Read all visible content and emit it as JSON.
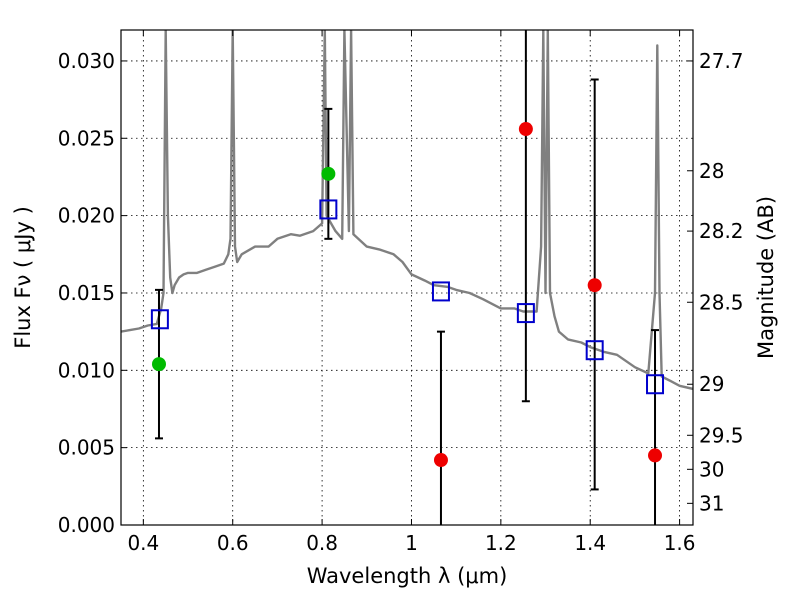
{
  "chart_data": {
    "type": "scatter",
    "xlabel": "Wavelength  λ (μm)",
    "ylabel": "Flux  Fν  ( μJy )",
    "ylabel_right": "Magnitude (AB)",
    "xlim": [
      0.35,
      1.63
    ],
    "ylim": [
      0.0,
      0.032
    ],
    "grid": true,
    "x_ticks": [
      0.4,
      0.6,
      0.8,
      1.0,
      1.2,
      1.4,
      1.6
    ],
    "x_tick_labels": [
      "0.4",
      "0.6",
      "0.8",
      "1",
      "1.2",
      "1.4",
      "1.6"
    ],
    "y_ticks": [
      0.0,
      0.005,
      0.01,
      0.015,
      0.02,
      0.025,
      0.03
    ],
    "y_tick_labels": [
      "0.000",
      "0.005",
      "0.010",
      "0.015",
      "0.020",
      "0.025",
      "0.030"
    ],
    "right_ticks": [
      {
        "label": "27.7",
        "flux": 0.03
      },
      {
        "label": "28",
        "flux": 0.0229
      },
      {
        "label": "28.2",
        "flux": 0.019
      },
      {
        "label": "28.5",
        "flux": 0.0144
      },
      {
        "label": "29",
        "flux": 0.0091
      },
      {
        "label": "29.5",
        "flux": 0.0058
      },
      {
        "label": "30",
        "flux": 0.0036
      },
      {
        "label": "31",
        "flux": 0.0014
      }
    ],
    "series": [
      {
        "kind": "spectrum",
        "color": "#808080",
        "x": [
          0.35,
          0.37,
          0.39,
          0.41,
          0.43,
          0.44,
          0.445,
          0.448,
          0.45,
          0.455,
          0.46,
          0.465,
          0.47,
          0.48,
          0.49,
          0.5,
          0.52,
          0.54,
          0.56,
          0.58,
          0.59,
          0.595,
          0.6,
          0.605,
          0.61,
          0.62,
          0.65,
          0.68,
          0.7,
          0.73,
          0.75,
          0.78,
          0.8,
          0.806,
          0.81,
          0.83,
          0.845,
          0.85,
          0.86,
          0.865,
          0.87,
          0.9,
          0.93,
          0.96,
          0.98,
          1.0,
          1.03,
          1.05,
          1.08,
          1.1,
          1.13,
          1.16,
          1.2,
          1.23,
          1.25,
          1.28,
          1.29,
          1.295,
          1.3,
          1.305,
          1.31,
          1.32,
          1.33,
          1.35,
          1.38,
          1.4,
          1.43,
          1.46,
          1.5,
          1.53,
          1.545,
          1.55,
          1.555,
          1.56,
          1.58,
          1.6,
          1.63
        ],
        "y": [
          0.0125,
          0.0126,
          0.0127,
          0.0129,
          0.013,
          0.014,
          0.015,
          0.025,
          0.032,
          0.02,
          0.016,
          0.015,
          0.0155,
          0.016,
          0.0162,
          0.0163,
          0.0163,
          0.0165,
          0.0167,
          0.0169,
          0.0175,
          0.0185,
          0.032,
          0.018,
          0.017,
          0.0175,
          0.018,
          0.018,
          0.0185,
          0.0188,
          0.0187,
          0.019,
          0.0195,
          0.032,
          0.02,
          0.019,
          0.0185,
          0.032,
          0.019,
          0.032,
          0.0188,
          0.018,
          0.0178,
          0.0175,
          0.017,
          0.0162,
          0.0158,
          0.0155,
          0.0154,
          0.0152,
          0.015,
          0.0146,
          0.014,
          0.014,
          0.0138,
          0.0138,
          0.018,
          0.032,
          0.015,
          0.032,
          0.015,
          0.0135,
          0.0125,
          0.012,
          0.0118,
          0.0115,
          0.0112,
          0.011,
          0.0102,
          0.0098,
          0.015,
          0.031,
          0.015,
          0.0096,
          0.0093,
          0.009,
          0.0088
        ]
      },
      {
        "kind": "model",
        "marker": "open-square",
        "color": "#0000cc",
        "x": [
          0.437,
          0.814,
          1.066,
          1.256,
          1.41,
          1.545
        ],
        "y": [
          0.0133,
          0.0204,
          0.0151,
          0.0137,
          0.0113,
          0.0091
        ]
      },
      {
        "kind": "observed",
        "marker": "circle",
        "color": "#00bb00",
        "x": [
          0.435,
          0.814
        ],
        "y": [
          0.0104,
          0.0227
        ],
        "err_low": [
          0.0056,
          0.0185
        ],
        "err_high": [
          0.0152,
          0.0269
        ]
      },
      {
        "kind": "observed",
        "marker": "circle",
        "color": "#ee0000",
        "x": [
          1.066,
          1.256,
          1.41,
          1.545
        ],
        "y": [
          0.0042,
          0.0256,
          0.0155,
          0.0045
        ],
        "err_low": [
          0.0,
          0.008,
          0.0023,
          0.0
        ],
        "err_high": [
          0.0125,
          0.032,
          0.0288,
          0.0126
        ]
      }
    ]
  }
}
